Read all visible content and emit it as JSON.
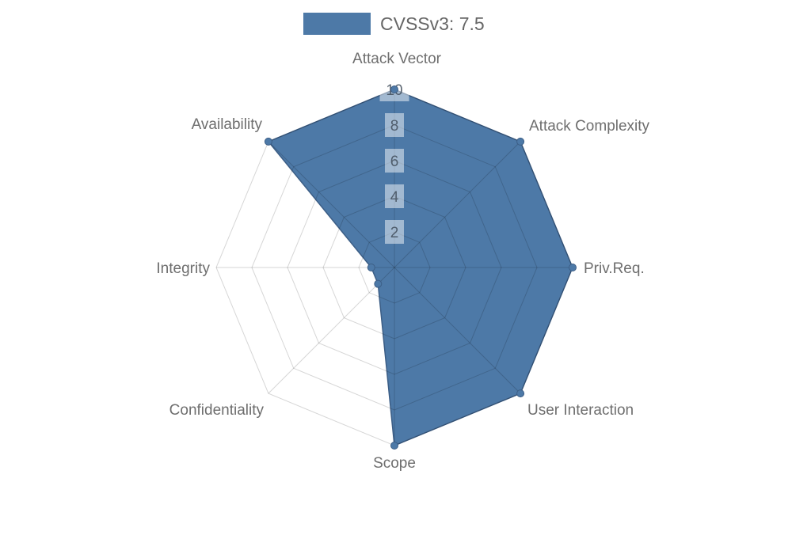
{
  "legend": {
    "label": "CVSSv3: 7.5",
    "swatch_color": "#4d79a7"
  },
  "chart_data": {
    "type": "radar",
    "title": "CVSSv3: 7.5",
    "axes": [
      "Attack Vector",
      "Attack Complexity",
      "Priv.Req.",
      "User Interaction",
      "Scope",
      "Confidentiality",
      "Integrity",
      "Availability"
    ],
    "series": [
      {
        "name": "CVSSv3: 7.5",
        "values": [
          10,
          10,
          10,
          10,
          10,
          1.3,
          1.3,
          10
        ]
      }
    ],
    "ticks": [
      2,
      4,
      6,
      8,
      10
    ],
    "axis_range": [
      0,
      10
    ],
    "grid": "polygon-web",
    "grid_on": true,
    "legend_position": "top-center",
    "colors": {
      "series_fill": "#4d79a7",
      "series_stroke": "#3c5e86",
      "grid_line": "rgba(0,0,0,0.16)",
      "axis_label": "#6e6e6e",
      "tick_label": "#414c5a",
      "tick_label_bg": "rgba(255,255,255,0.48)"
    }
  }
}
